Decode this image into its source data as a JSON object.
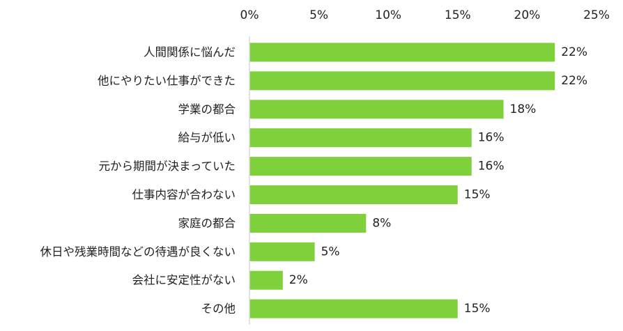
{
  "chart_data": {
    "type": "bar",
    "orientation": "horizontal",
    "title": "",
    "xlabel": "",
    "ylabel": "",
    "categories": [
      "人間関係に悩んだ",
      "他にやりたい仕事ができた",
      "学業の都合",
      "給与が低い",
      "元から期間が決まっていた",
      "仕事内容が合わない",
      "家庭の都合",
      "休日や残業時間などの待遇が良くない",
      "会社に安定性がない",
      "その他"
    ],
    "values": [
      22,
      22,
      18,
      16,
      16,
      15,
      8,
      5,
      2,
      15
    ],
    "value_labels": [
      "22%",
      "22%",
      "18%",
      "16%",
      "16%",
      "15%",
      "8%",
      "5%",
      "2%",
      "15%"
    ],
    "bar_values": [
      22.0,
      22.0,
      18.3,
      16.0,
      16.0,
      15.0,
      8.4,
      4.7,
      2.4,
      15.0
    ],
    "xlim": [
      0,
      25
    ],
    "x_ticks": [
      0,
      5,
      10,
      15,
      20,
      25
    ],
    "x_tick_labels": [
      "0%",
      "5%",
      "10%",
      "15%",
      "20%",
      "25%"
    ],
    "axis_position": "top",
    "grid": false,
    "legend": "none",
    "bar_color": "#7ed13b",
    "axis_color": "#d9d9d9"
  }
}
